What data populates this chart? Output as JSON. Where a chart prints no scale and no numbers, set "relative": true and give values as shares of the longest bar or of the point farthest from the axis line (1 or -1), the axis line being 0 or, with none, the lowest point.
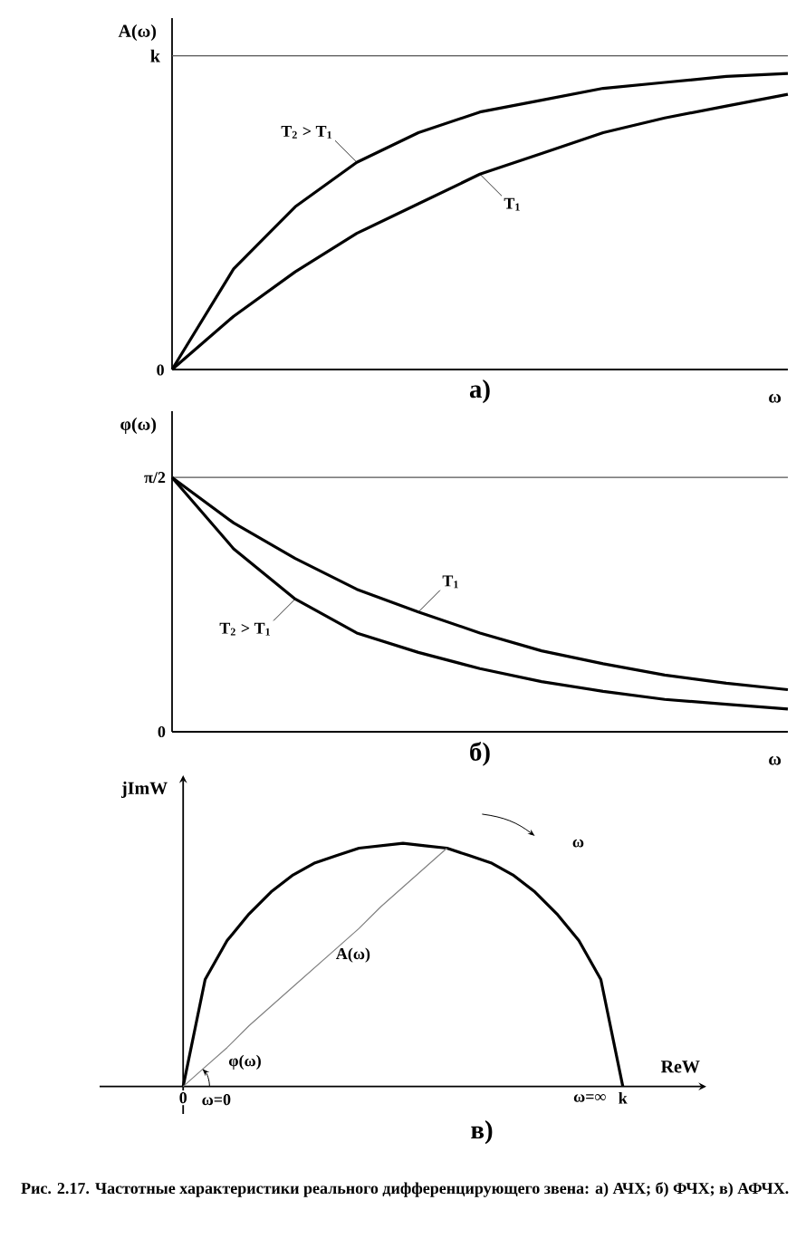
{
  "chart_data": [
    {
      "type": "line",
      "title": "а)",
      "xlabel": "ω",
      "ylabel": "A(ω)",
      "categories": [
        null,
        null,
        null,
        null,
        null,
        null,
        null,
        null,
        null,
        null,
        null
      ],
      "relative": true,
      "series": [
        {
          "name": "T$_{2}$ > T$_{1}$",
          "color": "#000000",
          "values": [
            0,
            0.34,
            0.55,
            0.7,
            0.8,
            0.87,
            0.91,
            0.95,
            0.97,
            0.99,
            1
          ]
        },
        {
          "name": "T$_{1}$",
          "color": "#000000",
          "values": [
            0,
            0.18,
            0.33,
            0.46,
            0.56,
            0.66,
            0.73,
            0.8,
            0.85,
            0.89,
            0.93
          ]
        }
      ],
      "ref_lines": [
        {
          "axis": "y",
          "value": 1.06,
          "label": "k",
          "color": "#555555"
        }
      ],
      "annotations": [
        "0"
      ]
    },
    {
      "type": "line",
      "title": "б)",
      "xlabel": "ω",
      "ylabel": "φ(ω)",
      "categories": [
        null,
        null,
        null,
        null,
        null,
        null,
        null,
        null,
        null,
        null,
        null
      ],
      "series": [
        {
          "name": "T$_{1}$",
          "color": "#000000",
          "values": [
            1.57,
            1.29,
            1.07,
            0.88,
            0.74,
            0.61,
            0.5,
            0.42,
            0.35,
            0.3,
            0.26
          ]
        },
        {
          "name": "T$_{2}$ > T$_{1}$",
          "color": "#000000",
          "values": [
            1.57,
            1.13,
            0.82,
            0.61,
            0.49,
            0.39,
            0.31,
            0.25,
            0.2,
            0.17,
            0.14
          ]
        }
      ],
      "ylim": [
        0,
        1.98
      ],
      "yticks": [
        {
          "value": 0,
          "label": "0"
        },
        {
          "value": 1.5708,
          "label": "π/2"
        }
      ],
      "ref_lines": [
        {
          "axis": "y",
          "value": 1.5708,
          "color": "#555555"
        }
      ],
      "tick_labels": "y"
    },
    {
      "type": "line",
      "title": "в)",
      "xlabel": "ReW",
      "ylabel": "jImW",
      "relative": true,
      "categories": [
        "0",
        null,
        null,
        null,
        null,
        null,
        null,
        null,
        null,
        null,
        null,
        null,
        null,
        null,
        null,
        null,
        null,
        null,
        null,
        null,
        "k"
      ],
      "series": [
        {
          "color": "#000000",
          "values": [
            0,
            0.44,
            0.6,
            0.71,
            0.8,
            0.87,
            0.92,
            0.95,
            0.98,
            0.99,
            1,
            0.99,
            0.98,
            0.95,
            0.92,
            0.87,
            0.8,
            0.71,
            0.6,
            0.44,
            0
          ]
        },
        {
          "color": "#808080",
          "values": [
            0,
            0.08,
            0.16,
            0.25,
            0.33,
            0.41,
            0.49,
            0.57,
            0.65,
            0.74,
            0.82,
            0.9,
            0.98,
            null,
            null,
            null,
            null,
            null,
            null,
            null,
            null
          ]
        }
      ],
      "annotations": [
        "A(ω)",
        "φ(ω)",
        "ω",
        "ω=0",
        "ω=∞",
        "Рис. 2.17. Частотные характеристики реального дифференцирующего звена: а) АЧХ; б) ФЧХ; в) АФЧХ."
      ]
    }
  ]
}
